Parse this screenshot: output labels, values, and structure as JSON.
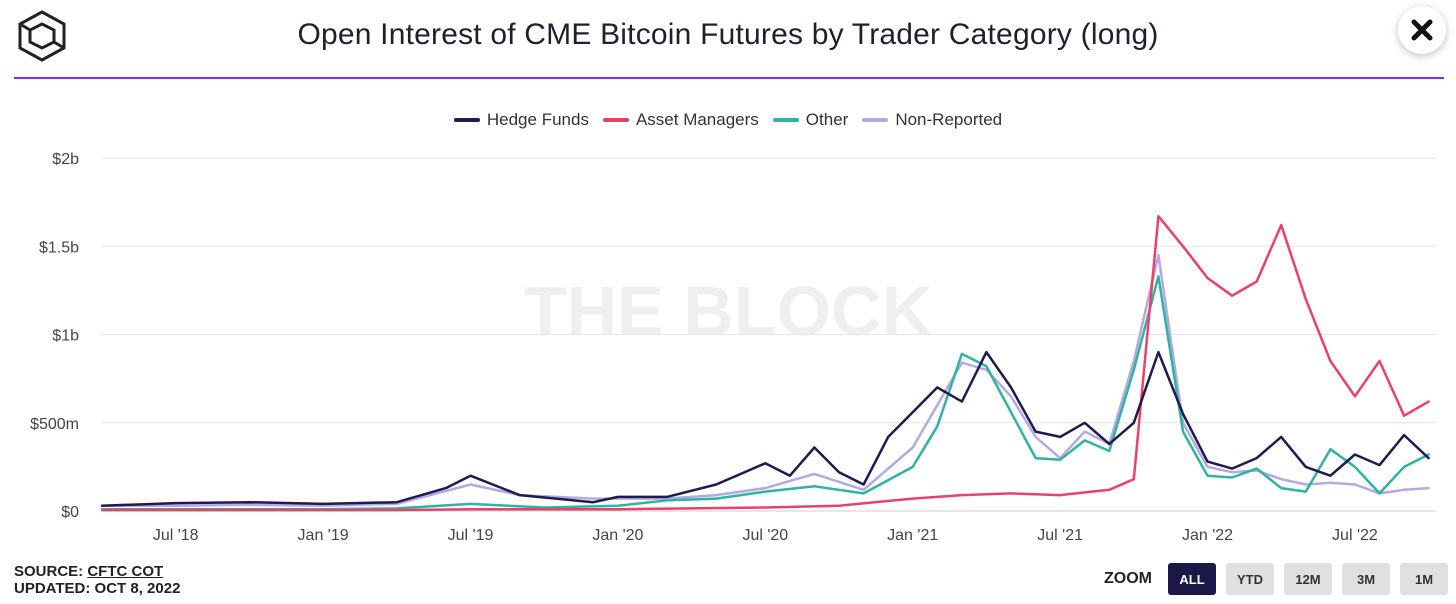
{
  "title": "Open Interest of CME Bitcoin Futures by Trader Category (long)",
  "watermark": "THE BLOCK",
  "source_label": "SOURCE:",
  "source_name": "CFTC COT",
  "updated": "UPDATED: OCT 8, 2022",
  "zoom": {
    "label": "ZOOM",
    "buttons": [
      "ALL",
      "YTD",
      "12M",
      "3M",
      "1M"
    ],
    "active": "ALL"
  },
  "colors": {
    "Hedge Funds": "#1f1a4f",
    "Asset Managers": "#e8426a",
    "Other": "#2fb3a3",
    "Non-Reported": "#b4a9e3",
    "accent_rule": "#8a2be2"
  },
  "chart_data": {
    "type": "line",
    "x_ticks": [
      "Jul '18",
      "Jan '19",
      "Jul '19",
      "Jan '20",
      "Jul '20",
      "Jan '21",
      "Jul '21",
      "Jan '22",
      "Jul '22"
    ],
    "x_range": [
      "2018-04",
      "2022-10"
    ],
    "y_ticks": [
      "$0",
      "$500m",
      "$1b",
      "$1.5b",
      "$2b"
    ],
    "ylim": [
      0,
      2000
    ],
    "y_unit": "millions USD",
    "legend_position": "top-center",
    "grid": true,
    "series": [
      {
        "name": "Hedge Funds",
        "points": [
          [
            "2018-04",
            30
          ],
          [
            "2018-07",
            45
          ],
          [
            "2018-10",
            50
          ],
          [
            "2019-01",
            40
          ],
          [
            "2019-04",
            50
          ],
          [
            "2019-06",
            130
          ],
          [
            "2019-07",
            200
          ],
          [
            "2019-09",
            90
          ],
          [
            "2019-12",
            50
          ],
          [
            "2020-01",
            80
          ],
          [
            "2020-03",
            80
          ],
          [
            "2020-05",
            150
          ],
          [
            "2020-07",
            270
          ],
          [
            "2020-08",
            200
          ],
          [
            "2020-09",
            360
          ],
          [
            "2020-10",
            220
          ],
          [
            "2020-11",
            150
          ],
          [
            "2020-12",
            420
          ],
          [
            "2021-01",
            560
          ],
          [
            "2021-02",
            700
          ],
          [
            "2021-03",
            620
          ],
          [
            "2021-04",
            900
          ],
          [
            "2021-05",
            700
          ],
          [
            "2021-06",
            450
          ],
          [
            "2021-07",
            420
          ],
          [
            "2021-08",
            500
          ],
          [
            "2021-09",
            380
          ],
          [
            "2021-10",
            500
          ],
          [
            "2021-11",
            900
          ],
          [
            "2021-12",
            550
          ],
          [
            "2022-01",
            280
          ],
          [
            "2022-02",
            240
          ],
          [
            "2022-03",
            300
          ],
          [
            "2022-04",
            420
          ],
          [
            "2022-05",
            250
          ],
          [
            "2022-06",
            200
          ],
          [
            "2022-07",
            320
          ],
          [
            "2022-08",
            260
          ],
          [
            "2022-09",
            430
          ],
          [
            "2022-10",
            300
          ]
        ]
      },
      {
        "name": "Asset Managers",
        "points": [
          [
            "2018-04",
            5
          ],
          [
            "2018-07",
            5
          ],
          [
            "2018-10",
            5
          ],
          [
            "2019-01",
            5
          ],
          [
            "2019-04",
            5
          ],
          [
            "2019-07",
            10
          ],
          [
            "2019-10",
            10
          ],
          [
            "2020-01",
            10
          ],
          [
            "2020-04",
            15
          ],
          [
            "2020-07",
            20
          ],
          [
            "2020-10",
            30
          ],
          [
            "2021-01",
            70
          ],
          [
            "2021-03",
            90
          ],
          [
            "2021-05",
            100
          ],
          [
            "2021-07",
            90
          ],
          [
            "2021-09",
            120
          ],
          [
            "2021-10",
            180
          ],
          [
            "2021-11",
            1670
          ],
          [
            "2021-12",
            1500
          ],
          [
            "2022-01",
            1320
          ],
          [
            "2022-02",
            1220
          ],
          [
            "2022-03",
            1300
          ],
          [
            "2022-04",
            1620
          ],
          [
            "2022-05",
            1200
          ],
          [
            "2022-06",
            850
          ],
          [
            "2022-07",
            650
          ],
          [
            "2022-08",
            850
          ],
          [
            "2022-09",
            540
          ],
          [
            "2022-10",
            620
          ]
        ]
      },
      {
        "name": "Other",
        "points": [
          [
            "2018-04",
            10
          ],
          [
            "2018-07",
            10
          ],
          [
            "2018-10",
            10
          ],
          [
            "2019-01",
            10
          ],
          [
            "2019-04",
            15
          ],
          [
            "2019-07",
            40
          ],
          [
            "2019-10",
            20
          ],
          [
            "2020-01",
            30
          ],
          [
            "2020-03",
            60
          ],
          [
            "2020-05",
            70
          ],
          [
            "2020-07",
            110
          ],
          [
            "2020-09",
            140
          ],
          [
            "2020-11",
            100
          ],
          [
            "2021-01",
            250
          ],
          [
            "2021-02",
            480
          ],
          [
            "2021-03",
            890
          ],
          [
            "2021-04",
            820
          ],
          [
            "2021-05",
            560
          ],
          [
            "2021-06",
            300
          ],
          [
            "2021-07",
            290
          ],
          [
            "2021-08",
            400
          ],
          [
            "2021-09",
            340
          ],
          [
            "2021-10",
            800
          ],
          [
            "2021-11",
            1330
          ],
          [
            "2021-12",
            450
          ],
          [
            "2022-01",
            200
          ],
          [
            "2022-02",
            190
          ],
          [
            "2022-03",
            240
          ],
          [
            "2022-04",
            130
          ],
          [
            "2022-05",
            110
          ],
          [
            "2022-06",
            350
          ],
          [
            "2022-07",
            250
          ],
          [
            "2022-08",
            100
          ],
          [
            "2022-09",
            250
          ],
          [
            "2022-10",
            320
          ]
        ]
      },
      {
        "name": "Non-Reported",
        "points": [
          [
            "2018-04",
            30
          ],
          [
            "2018-07",
            30
          ],
          [
            "2018-10",
            35
          ],
          [
            "2019-01",
            30
          ],
          [
            "2019-04",
            40
          ],
          [
            "2019-07",
            150
          ],
          [
            "2019-09",
            90
          ],
          [
            "2019-12",
            70
          ],
          [
            "2020-01",
            70
          ],
          [
            "2020-03",
            70
          ],
          [
            "2020-05",
            90
          ],
          [
            "2020-07",
            130
          ],
          [
            "2020-09",
            210
          ],
          [
            "2020-11",
            120
          ],
          [
            "2021-01",
            360
          ],
          [
            "2021-02",
            600
          ],
          [
            "2021-03",
            840
          ],
          [
            "2021-04",
            800
          ],
          [
            "2021-05",
            650
          ],
          [
            "2021-06",
            420
          ],
          [
            "2021-07",
            300
          ],
          [
            "2021-08",
            450
          ],
          [
            "2021-09",
            380
          ],
          [
            "2021-10",
            850
          ],
          [
            "2021-11",
            1450
          ],
          [
            "2021-12",
            500
          ],
          [
            "2022-01",
            250
          ],
          [
            "2022-02",
            220
          ],
          [
            "2022-03",
            230
          ],
          [
            "2022-04",
            180
          ],
          [
            "2022-05",
            150
          ],
          [
            "2022-06",
            160
          ],
          [
            "2022-07",
            150
          ],
          [
            "2022-08",
            100
          ],
          [
            "2022-09",
            120
          ],
          [
            "2022-10",
            130
          ]
        ]
      }
    ]
  }
}
